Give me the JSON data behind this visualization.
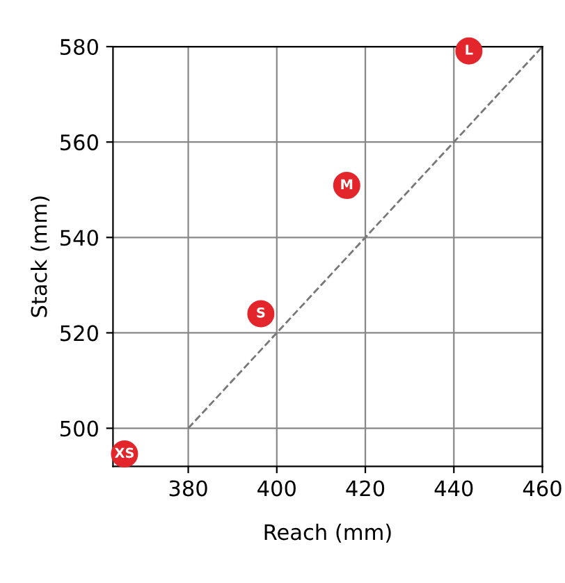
{
  "chart_data": {
    "type": "scatter",
    "xlabel": "Reach (mm)",
    "ylabel": "Stack (mm)",
    "xlim": [
      363,
      460
    ],
    "ylim": [
      492,
      580
    ],
    "xticks": [
      380,
      400,
      420,
      440,
      460
    ],
    "yticks": [
      500,
      520,
      540,
      560,
      580
    ],
    "grid": true,
    "marker": "circle",
    "series": [
      {
        "type": "line",
        "color": "#777777",
        "line_style": "dashed",
        "marker": "none",
        "x": [
          380,
          460
        ],
        "values": [
          500,
          580
        ]
      },
      {
        "color": "#e3262b",
        "x": [
          365.6,
          396.4,
          415.8,
          443.4
        ],
        "values": [
          494.6,
          524.0,
          550.9,
          579.1
        ]
      }
    ],
    "annotations": [
      {
        "text": "XS",
        "x": 365.6,
        "y": 494.6
      },
      {
        "text": "S",
        "x": 396.4,
        "y": 524.0
      },
      {
        "text": "M",
        "x": 415.8,
        "y": 550.9
      },
      {
        "text": "L",
        "x": 443.4,
        "y": 579.1
      }
    ]
  }
}
